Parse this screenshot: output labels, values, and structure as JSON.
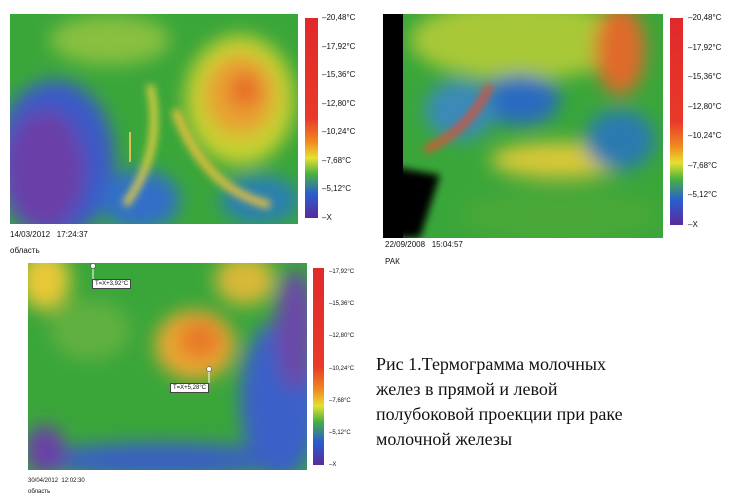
{
  "panels": [
    {
      "date": "14/03/2012",
      "time": "17:24:37",
      "label": "область",
      "scale": [
        "–20,48°C",
        "–17,92°C",
        "–15,36°C",
        "–12,80°C",
        "–10,24°C",
        "–7,68°C",
        "–5,12°C",
        "–X"
      ]
    },
    {
      "date": "22/09/2008",
      "time": "15:04:57",
      "label": "РАК",
      "scale": [
        "–20,48°C",
        "–17,92°C",
        "–15,36°C",
        "–12,80°C",
        "–10,24°C",
        "–7,68°C",
        "–5,12°C",
        "–X"
      ]
    },
    {
      "date": "30/04/2012",
      "time": "12:02:30",
      "label": "область",
      "scale": [
        "–17,92°C",
        "–15,36°C",
        "–12,80°C",
        "–10,24°C",
        "–7,68°C",
        "–5,12°C",
        "–X"
      ],
      "markers": [
        "T=X+3,92°C",
        "T=X+5,28°C"
      ]
    }
  ],
  "caption": [
    "Рис 1.Термограмма молочных",
    "желез в прямой и левой",
    "полубоковой проекции при раке",
    "молочной железы"
  ]
}
